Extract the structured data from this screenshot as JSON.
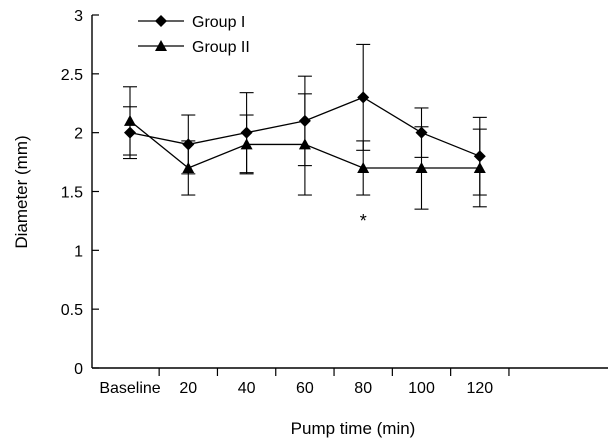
{
  "chart_data": {
    "type": "line",
    "xlabel": "Pump time (min)",
    "ylabel": "Diameter (mm)",
    "categories": [
      "Baseline",
      "20",
      "40",
      "60",
      "80",
      "100",
      "120"
    ],
    "ylim": [
      0,
      3
    ],
    "yticks": [
      0,
      0.5,
      1,
      1.5,
      2,
      2.5,
      3
    ],
    "ytick_labels": [
      "0",
      "0.5",
      "1",
      "1.5",
      "2",
      "2.5",
      "3"
    ],
    "legend_position": "top-left",
    "grid": false,
    "series": [
      {
        "name": "Group I",
        "marker": "diamond",
        "values": [
          2.0,
          1.9,
          2.0,
          2.1,
          2.3,
          2.0,
          1.8
        ],
        "error": [
          0.22,
          0.25,
          0.34,
          0.38,
          0.45,
          0.21,
          0.33
        ]
      },
      {
        "name": "Group II",
        "marker": "triangle",
        "values": [
          2.1,
          1.7,
          1.9,
          1.9,
          1.7,
          1.7,
          1.7
        ],
        "error": [
          0.29,
          0.23,
          0.25,
          0.43,
          0.23,
          0.35,
          0.33
        ]
      }
    ],
    "annotations": [
      {
        "text": "*",
        "category": "80",
        "y": 1.25
      }
    ]
  }
}
